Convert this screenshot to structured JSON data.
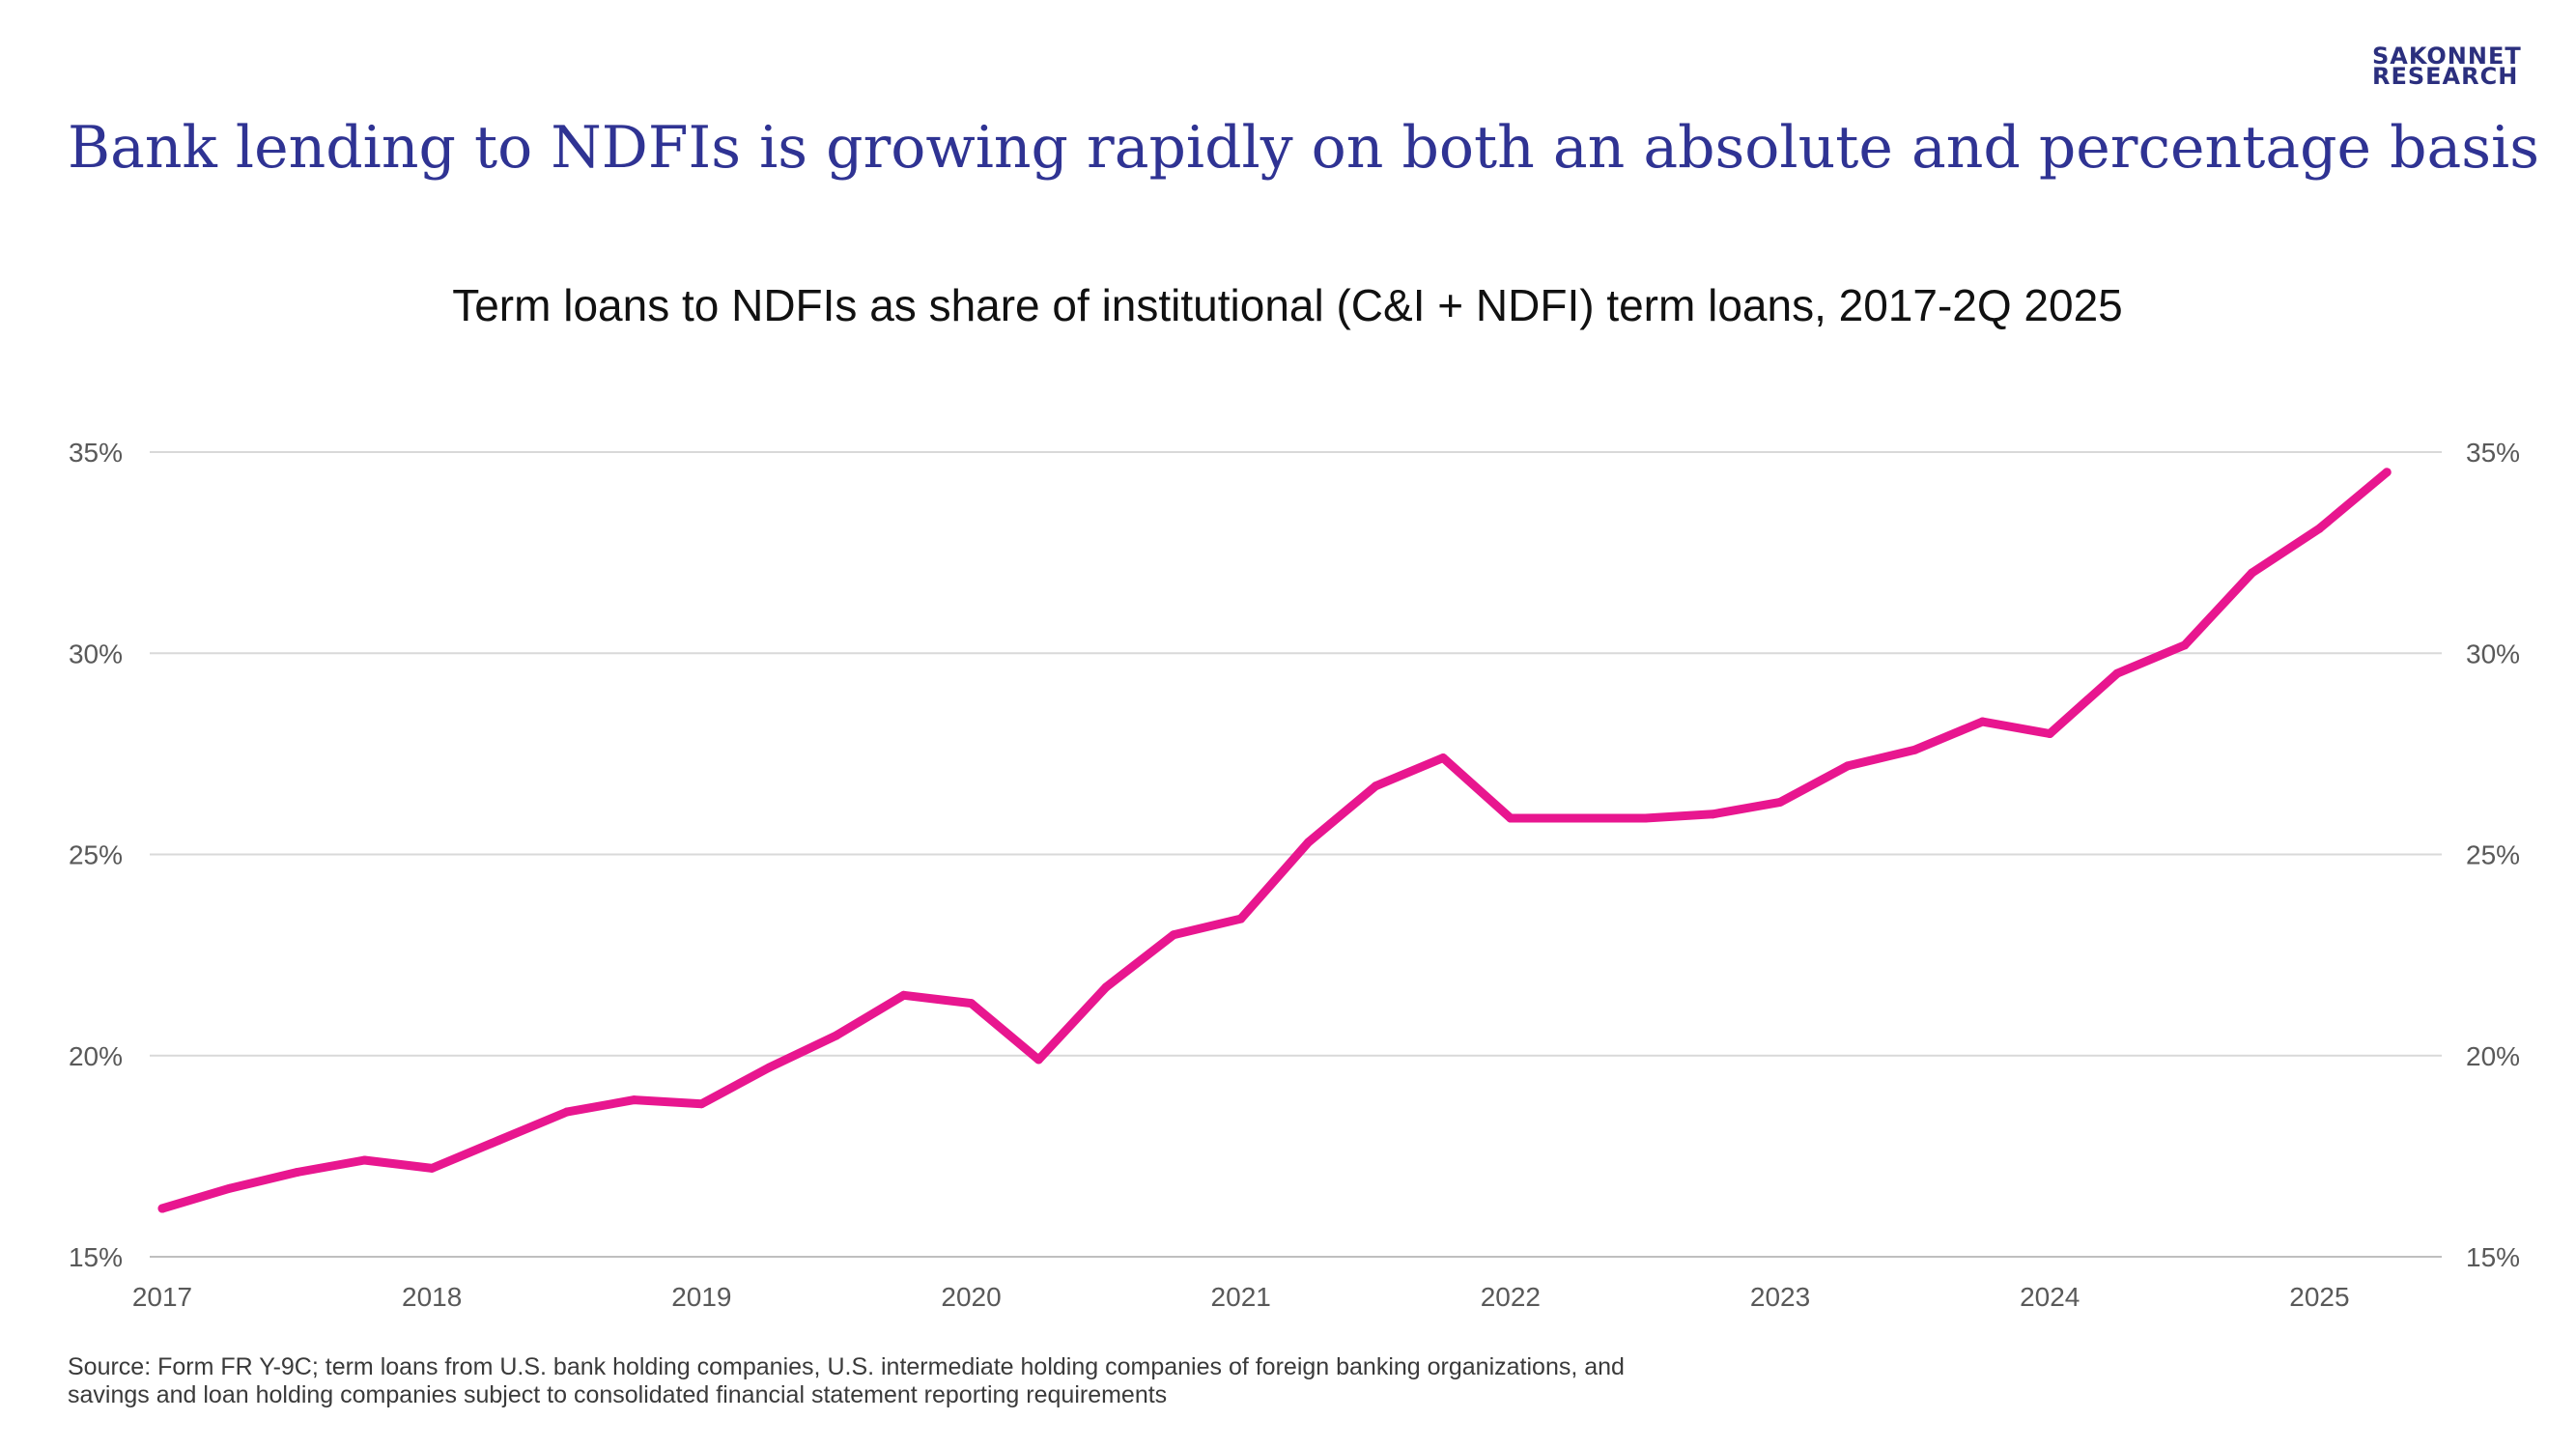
{
  "branding": {
    "logo_line1": "SAKONNET",
    "logo_line2": "RESEARCH",
    "brand_color": "#2f3393"
  },
  "headline": "Bank lending to NDFIs is growing rapidly on both an absolute and percentage basis",
  "source_note": {
    "line1": "Source: Form FR Y-9C; term loans from U.S. bank holding companies, U.S. intermediate holding companies of foreign banking organizations, and",
    "line2": "savings and loan holding companies subject to consolidated financial statement reporting requirements"
  },
  "chart_data": {
    "type": "line",
    "title": "Term loans to NDFIs as share of institutional (C&I + NDFI) term loans, 2017-2Q 2025",
    "xlabel": "",
    "ylabel": "",
    "x_ticks": [
      "2017",
      "2018",
      "2019",
      "2020",
      "2021",
      "2022",
      "2023",
      "2024",
      "2025"
    ],
    "y_ticks_left": [
      "15%",
      "20%",
      "25%",
      "30%",
      "35%"
    ],
    "y_ticks_right": [
      "15%",
      "20%",
      "25%",
      "30%",
      "35%"
    ],
    "ylim": [
      15,
      35
    ],
    "xlim": [
      2017.0,
      2025.25
    ],
    "grid": "horizontal",
    "legend": "none",
    "line_color": "#e8168f",
    "series": [
      {
        "x": [
          2017.0,
          2017.25,
          2017.5,
          2017.75,
          2018.0,
          2018.25,
          2018.5,
          2018.75,
          2019.0,
          2019.25,
          2019.5,
          2019.75,
          2020.0,
          2020.25,
          2020.5,
          2020.75,
          2021.0,
          2021.25,
          2021.5,
          2021.75,
          2022.0,
          2022.25,
          2022.5,
          2022.75,
          2023.0,
          2023.25,
          2023.5,
          2023.75,
          2024.0,
          2024.25,
          2024.5,
          2024.75,
          2025.0,
          2025.25
        ],
        "values": [
          16.2,
          16.7,
          17.1,
          17.4,
          17.2,
          17.9,
          18.6,
          18.9,
          18.8,
          19.7,
          20.5,
          21.5,
          21.3,
          19.9,
          21.7,
          23.0,
          23.4,
          25.3,
          26.7,
          27.4,
          25.9,
          25.9,
          25.9,
          26.0,
          26.3,
          27.2,
          27.6,
          28.3,
          28.0,
          29.5,
          30.2,
          32.0,
          33.1,
          34.5
        ]
      }
    ]
  }
}
